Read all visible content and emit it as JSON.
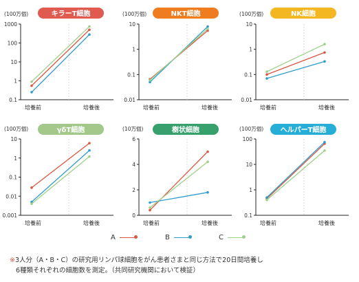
{
  "colors": {
    "A": "#d7573f",
    "B": "#2f9ccc",
    "C": "#9dd089"
  },
  "chart_data": [
    {
      "type": "line",
      "title": "キラーT細胞",
      "title_color": "#e05a4f",
      "unit": "(100万個)",
      "scale": "log",
      "yticks": [
        "1000",
        "100",
        "10",
        "1",
        "0.1"
      ],
      "ylim": [
        0.1,
        1000
      ],
      "categories": [
        "培養前",
        "培養後"
      ],
      "series": [
        {
          "name": "A",
          "values": [
            0.55,
            500
          ]
        },
        {
          "name": "B",
          "values": [
            0.25,
            280
          ]
        },
        {
          "name": "C",
          "values": [
            0.9,
            750
          ]
        }
      ]
    },
    {
      "type": "line",
      "title": "NKT細胞",
      "title_color": "#ef7d1f",
      "unit": "(100万個)",
      "scale": "log",
      "yticks": [
        "10",
        "1",
        "0.1",
        "0.01"
      ],
      "ylim": [
        0.01,
        10
      ],
      "categories": [
        "培養前",
        "培養後"
      ],
      "series": [
        {
          "name": "A",
          "values": [
            0.065,
            5.5
          ]
        },
        {
          "name": "B",
          "values": [
            0.05,
            8.0
          ]
        },
        {
          "name": "C",
          "values": [
            0.06,
            6.5
          ]
        }
      ]
    },
    {
      "type": "line",
      "title": "NK細胞",
      "title_color": "#f3b722",
      "unit": "(100万個)",
      "scale": "log",
      "yticks": [
        "10",
        "1",
        "0.1",
        "0.01"
      ],
      "ylim": [
        0.01,
        10
      ],
      "categories": [
        "培養前",
        "培養後"
      ],
      "series": [
        {
          "name": "A",
          "values": [
            0.1,
            0.75
          ]
        },
        {
          "name": "B",
          "values": [
            0.07,
            0.33
          ]
        },
        {
          "name": "C",
          "values": [
            0.13,
            1.6
          ]
        }
      ]
    },
    {
      "type": "line",
      "title": "γδT細胞",
      "title_color": "#a3c98a",
      "unit": "(100万個)",
      "scale": "log",
      "yticks": [
        "10",
        "1",
        "0.1",
        "0.01",
        "0.001"
      ],
      "ylim": [
        0.001,
        10
      ],
      "categories": [
        "培養前",
        "培養後"
      ],
      "series": [
        {
          "name": "A",
          "values": [
            0.028,
            6
          ]
        },
        {
          "name": "B",
          "values": [
            0.005,
            2.5
          ]
        },
        {
          "name": "C",
          "values": [
            0.004,
            1.2
          ]
        }
      ]
    },
    {
      "type": "line",
      "title": "樹状細胞",
      "title_color": "#38a06c",
      "unit": "(10万個)",
      "scale": "linear",
      "yticks": [
        "6",
        "4",
        "2",
        "0"
      ],
      "ylim": [
        0,
        6
      ],
      "categories": [
        "培養前",
        "培養後"
      ],
      "series": [
        {
          "name": "A",
          "values": [
            0.4,
            5.0
          ]
        },
        {
          "name": "B",
          "values": [
            1.0,
            1.8
          ]
        },
        {
          "name": "C",
          "values": [
            0.6,
            4.2
          ]
        }
      ]
    },
    {
      "type": "line",
      "title": "ヘルパーT細胞",
      "title_color": "#27aed6",
      "unit": "(100万個)",
      "scale": "log",
      "yticks": [
        "100",
        "10",
        "1",
        "0.1"
      ],
      "ylim": [
        0.1,
        100
      ],
      "categories": [
        "培養前",
        "培養後"
      ],
      "series": [
        {
          "name": "A",
          "values": [
            0.45,
            65
          ]
        },
        {
          "name": "B",
          "values": [
            0.5,
            75
          ]
        },
        {
          "name": "C",
          "values": [
            0.4,
            35
          ]
        }
      ]
    }
  ],
  "legend": [
    {
      "label": "A",
      "key": "A"
    },
    {
      "label": "B",
      "key": "B"
    },
    {
      "label": "C",
      "key": "C"
    }
  ],
  "note": {
    "asterisk": "※",
    "line1": "3人分（A・B・C）の研究用リンパ球細胞をがん患者さまと同じ方法で20日間培養し",
    "line2": "6種類それぞれの細胞数を測定。（共同研究機関において検証）"
  }
}
